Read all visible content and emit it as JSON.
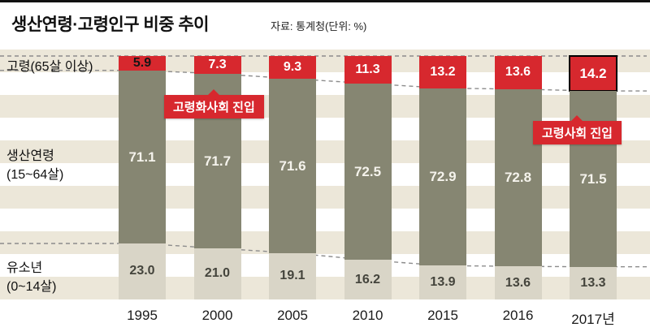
{
  "header": {
    "title": "생산연령·고령인구 비중 추이",
    "source": "자료: 통계청(단위: %)"
  },
  "left_labels": {
    "elderly": "고령(65살 이상)",
    "working_line1": "생산연령",
    "working_line2": "(15~64살)",
    "youth_line1": "유소년",
    "youth_line2": "(0~14살)"
  },
  "chart_data": {
    "type": "bar",
    "stacked": true,
    "title": "생산연령·고령인구 비중 추이",
    "source": "자료: 통계청",
    "unit": "%",
    "ylim": [
      0,
      100
    ],
    "categories": [
      "1995",
      "2000",
      "2005",
      "2010",
      "2015",
      "2016",
      "2017년"
    ],
    "series": [
      {
        "name": "고령(65살 이상)",
        "color": "#d7282e",
        "values": [
          5.9,
          7.3,
          9.3,
          11.3,
          13.2,
          13.6,
          14.2
        ]
      },
      {
        "name": "생산연령(15~64살)",
        "color": "#868672",
        "values": [
          71.1,
          71.7,
          71.6,
          72.5,
          72.9,
          72.8,
          71.5
        ]
      },
      {
        "name": "유소년(0~14살)",
        "color": "#d9d5c7",
        "values": [
          23.0,
          21.0,
          19.1,
          16.2,
          13.9,
          13.6,
          13.3
        ]
      }
    ],
    "annotations": [
      {
        "text": "고령화사회 진입",
        "target": "2000"
      },
      {
        "text": "고령사회 진입",
        "target": "2017년"
      }
    ],
    "legend_position": "left",
    "grid": "dashed-boundary-lines"
  }
}
